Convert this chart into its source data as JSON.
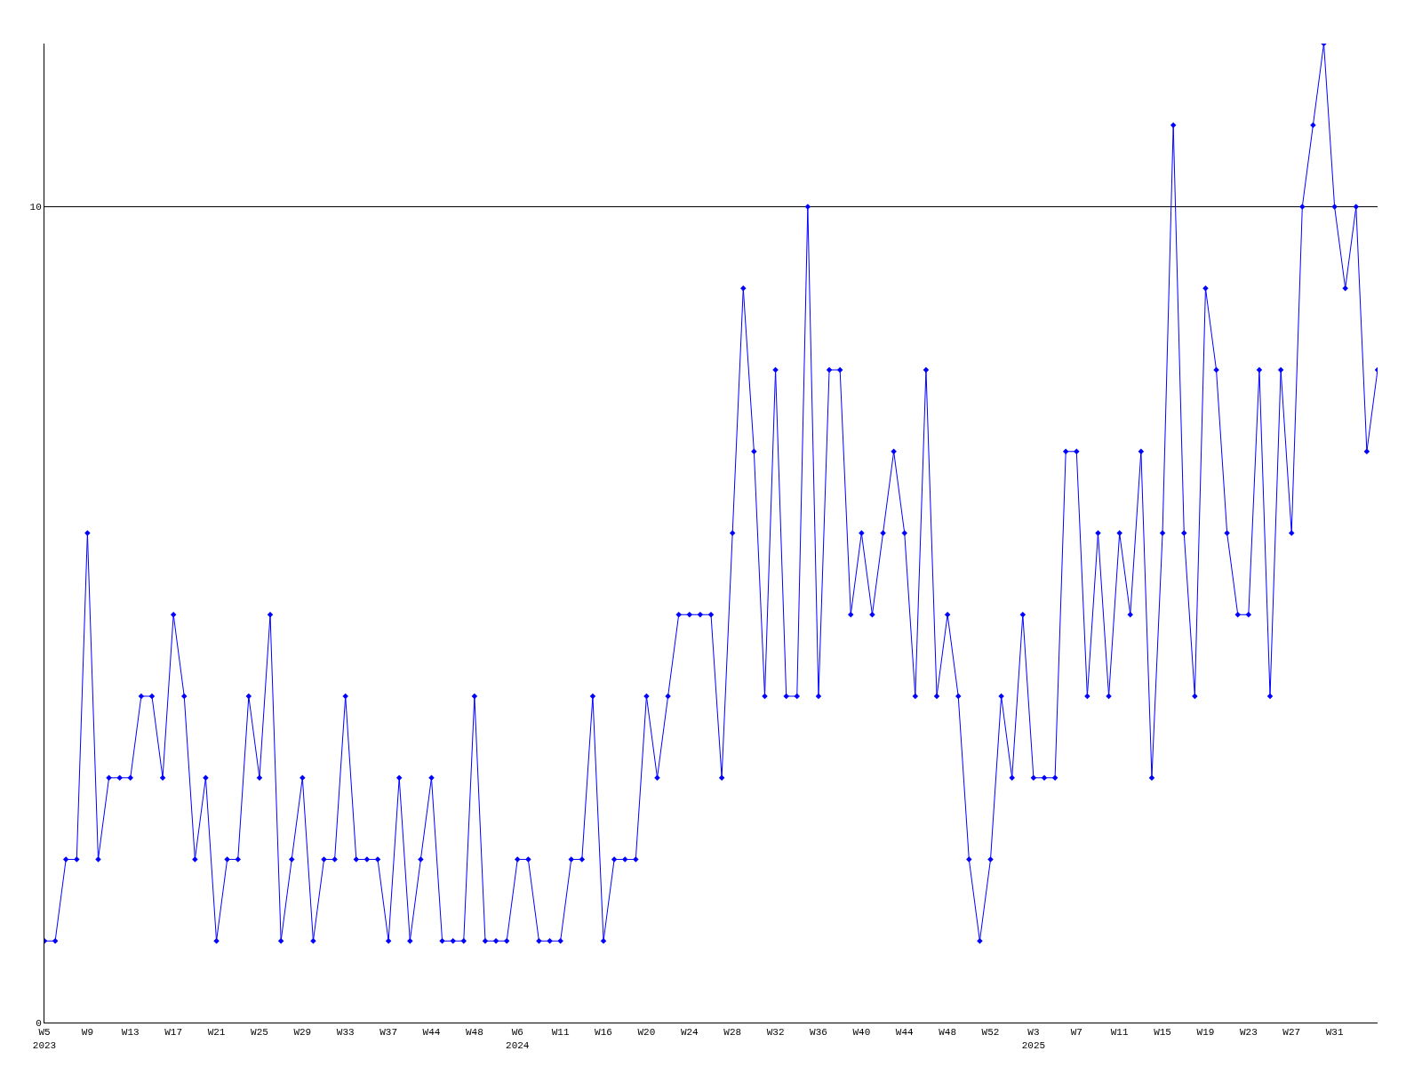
{
  "chart_data": {
    "type": "line",
    "categories": [
      "W5\n2023",
      null,
      null,
      null,
      "W9",
      null,
      null,
      null,
      "W13",
      null,
      null,
      null,
      "W17",
      null,
      null,
      null,
      "W21",
      null,
      null,
      null,
      "W25",
      null,
      null,
      null,
      "W29",
      null,
      null,
      null,
      "W33",
      null,
      null,
      null,
      "W37",
      null,
      null,
      null,
      "W44",
      null,
      null,
      null,
      "W48",
      null,
      null,
      null,
      "W6\n2024",
      null,
      null,
      null,
      "W11",
      null,
      null,
      null,
      "W16",
      null,
      null,
      null,
      "W20",
      null,
      null,
      null,
      "W24",
      null,
      null,
      null,
      "W28",
      null,
      null,
      null,
      "W32",
      null,
      null,
      null,
      "W36",
      null,
      null,
      null,
      "W40",
      null,
      null,
      null,
      "W44",
      null,
      null,
      null,
      "W48",
      null,
      null,
      null,
      "W52",
      null,
      null,
      null,
      "W3\n2025",
      null,
      null,
      null,
      "W7",
      null,
      null,
      null,
      "W11",
      null,
      null,
      null,
      "W15",
      null,
      null,
      null,
      "W19",
      null,
      null,
      null,
      "W23",
      null,
      null,
      null,
      "W27",
      null,
      null,
      null,
      "W31",
      null,
      null,
      null,
      null
    ],
    "series": [
      {
        "color": "#0000ff",
        "values": [
          1,
          1,
          2,
          2,
          6,
          2,
          3,
          3,
          3,
          4,
          4,
          3,
          5,
          4,
          2,
          3,
          1,
          2,
          2,
          4,
          3,
          5,
          1,
          2,
          3,
          1,
          2,
          2,
          4,
          2,
          2,
          2,
          1,
          3,
          1,
          2,
          3,
          1,
          1,
          1,
          4,
          1,
          1,
          1,
          2,
          2,
          1,
          1,
          1,
          2,
          2,
          4,
          1,
          2,
          2,
          2,
          4,
          3,
          4,
          5,
          5,
          5,
          5,
          3,
          6,
          9,
          7,
          4,
          8,
          4,
          4,
          10,
          4,
          8,
          8,
          5,
          6,
          5,
          6,
          7,
          6,
          4,
          8,
          4,
          5,
          4,
          2,
          1,
          2,
          4,
          3,
          5,
          3,
          3,
          3,
          7,
          7,
          4,
          6,
          4,
          6,
          5,
          7,
          3,
          6,
          11,
          6,
          4,
          9,
          8,
          6,
          5,
          5,
          8,
          4,
          8,
          6,
          10,
          11,
          12,
          10,
          9,
          10,
          7,
          8
        ]
      }
    ],
    "ylim": [
      0,
      12
    ],
    "yticks": [
      0,
      10
    ],
    "grid": "y",
    "marker": "diamond",
    "line_style": "solid"
  }
}
